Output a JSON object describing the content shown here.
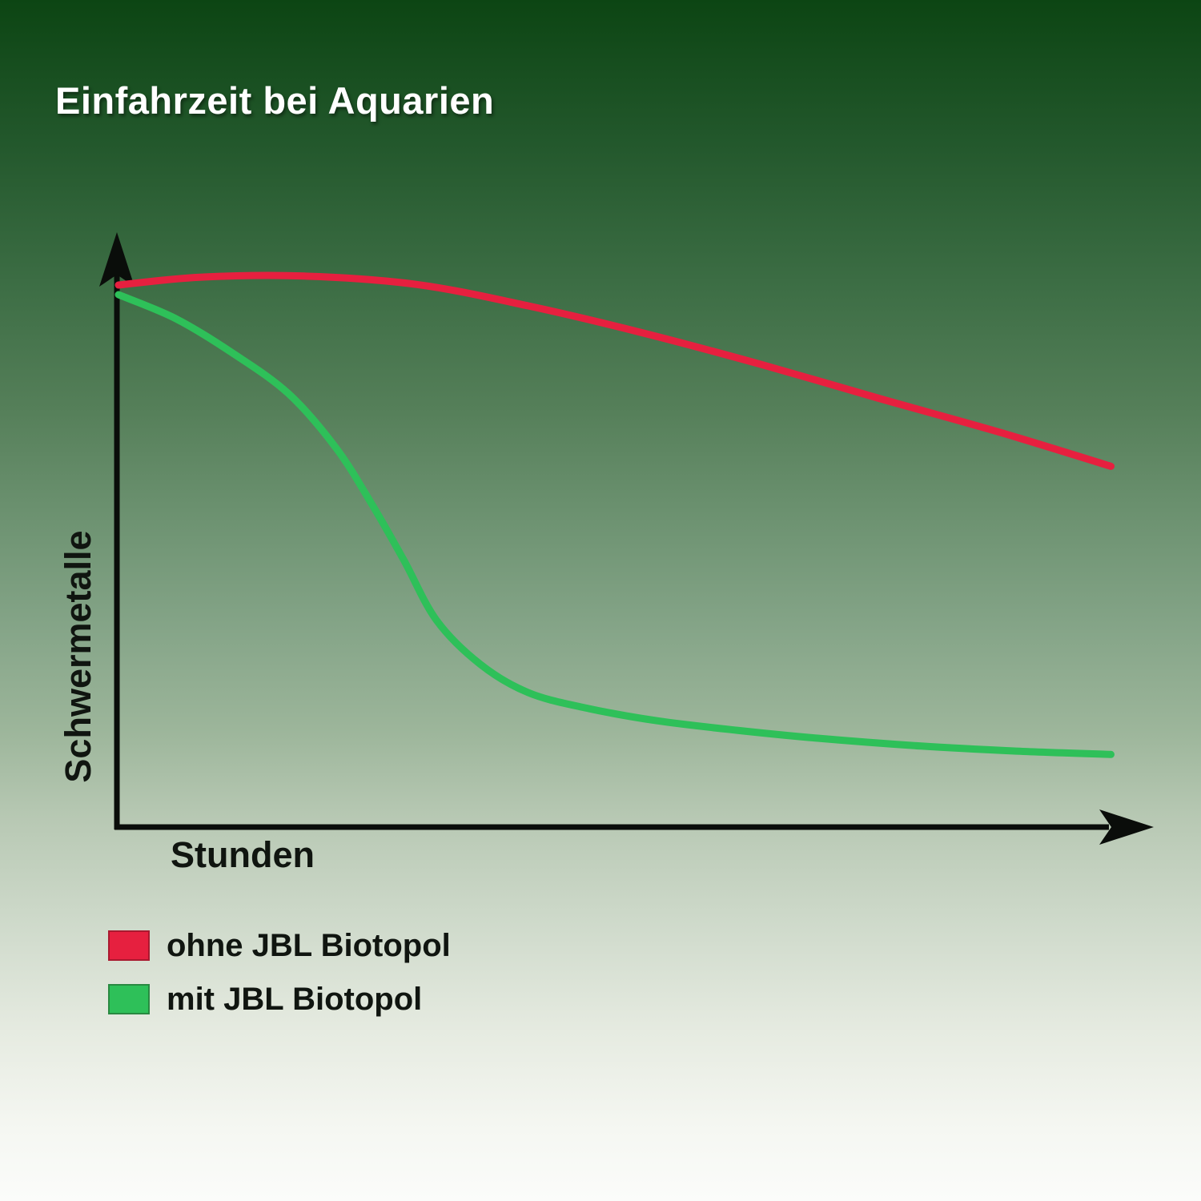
{
  "page": {
    "title": "Einfahrzeit bei Aquarien"
  },
  "colors": {
    "background_top": "#0c4513",
    "background_bottom": "#fbfcfa",
    "axis": "#0a0d0a",
    "title_text": "#ffffff",
    "label_text": "#101510"
  },
  "chart_data": {
    "type": "line",
    "title": "Einfahrzeit bei Aquarien",
    "xlabel": "Stunden",
    "ylabel": "Schwermetalle",
    "grid": false,
    "x_range_norm": [
      0,
      1
    ],
    "y_range_norm": [
      0,
      1
    ],
    "axis_ticks": "none (qualitative axes, arrows only)",
    "legend_position": "bottom-left",
    "series": [
      {
        "id": "ohne-jbl-biotopol",
        "name": "ohne JBL Biotopol",
        "color": "#e6203f",
        "x": [
          0,
          0.082,
          0.187,
          0.3,
          0.412,
          0.525,
          0.646,
          0.766,
          0.887,
          0.998
        ],
        "y": [
          0.963,
          0.977,
          0.979,
          0.964,
          0.926,
          0.879,
          0.822,
          0.761,
          0.701,
          0.641
        ]
      },
      {
        "id": "mit-jbl-biotopol",
        "name": "mit JBL Biotopol",
        "color": "#2ec059",
        "x": [
          0,
          0.058,
          0.114,
          0.171,
          0.219,
          0.255,
          0.287,
          0.32,
          0.364,
          0.412,
          0.469,
          0.541,
          0.622,
          0.702,
          0.807,
          0.903,
          0.998
        ],
        "y": [
          0.946,
          0.903,
          0.843,
          0.77,
          0.673,
          0.573,
          0.474,
          0.367,
          0.289,
          0.239,
          0.212,
          0.189,
          0.172,
          0.158,
          0.144,
          0.135,
          0.129
        ]
      }
    ]
  }
}
